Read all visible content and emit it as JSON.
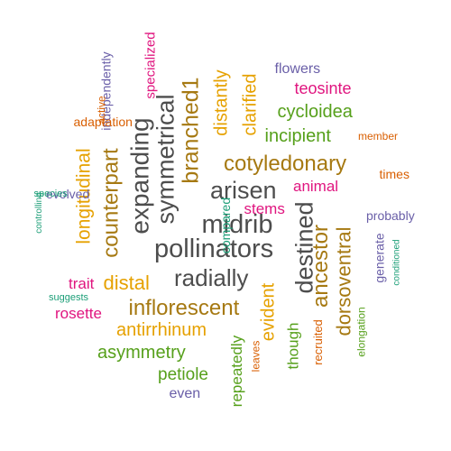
{
  "colors": {
    "dark_gray": "#4d4d4d",
    "gold": "#e6a100",
    "green": "#56a01b",
    "brown": "#a67912",
    "magenta": "#e0157f",
    "purple": "#6a5fa8",
    "orange": "#d95f02",
    "teal": "#1b9e77"
  },
  "words": [
    {
      "text": "pollinators",
      "color": "dark_gray",
      "vertical": false
    },
    {
      "text": "midrib",
      "color": "dark_gray",
      "vertical": false
    },
    {
      "text": "arisen",
      "color": "dark_gray",
      "vertical": false
    },
    {
      "text": "radially",
      "color": "dark_gray",
      "vertical": false
    },
    {
      "text": "destined",
      "color": "dark_gray",
      "vertical": true
    },
    {
      "text": "expanding",
      "color": "dark_gray",
      "vertical": true
    },
    {
      "text": "symmetrical",
      "color": "dark_gray",
      "vertical": true
    },
    {
      "text": "counterpart",
      "color": "brown",
      "vertical": true
    },
    {
      "text": "branched1",
      "color": "brown",
      "vertical": true
    },
    {
      "text": "cotyledonary",
      "color": "brown",
      "vertical": false
    },
    {
      "text": "ancestor",
      "color": "brown",
      "vertical": true
    },
    {
      "text": "dorsoventral",
      "color": "brown",
      "vertical": true
    },
    {
      "text": "inflorescent",
      "color": "brown",
      "vertical": false
    },
    {
      "text": "distal",
      "color": "gold",
      "vertical": false
    },
    {
      "text": "antirrhinum",
      "color": "gold",
      "vertical": false
    },
    {
      "text": "longitudinal",
      "color": "gold",
      "vertical": true
    },
    {
      "text": "distantly",
      "color": "gold",
      "vertical": true
    },
    {
      "text": "clarified",
      "color": "gold",
      "vertical": true
    },
    {
      "text": "evident",
      "color": "gold",
      "vertical": true
    },
    {
      "text": "incipient",
      "color": "green",
      "vertical": false
    },
    {
      "text": "cycloidea",
      "color": "green",
      "vertical": false
    },
    {
      "text": "asymmetry",
      "color": "green",
      "vertical": false
    },
    {
      "text": "petiole",
      "color": "green",
      "vertical": false
    },
    {
      "text": "repeatedly",
      "color": "green",
      "vertical": true
    },
    {
      "text": "though",
      "color": "green",
      "vertical": true
    },
    {
      "text": "elongation",
      "color": "green",
      "vertical": true
    },
    {
      "text": "teosinte",
      "color": "magenta",
      "vertical": false
    },
    {
      "text": "animal",
      "color": "magenta",
      "vertical": false
    },
    {
      "text": "stems",
      "color": "magenta",
      "vertical": false
    },
    {
      "text": "trait",
      "color": "magenta",
      "vertical": false
    },
    {
      "text": "rosette",
      "color": "magenta",
      "vertical": false
    },
    {
      "text": "specialized",
      "color": "magenta",
      "vertical": true
    },
    {
      "text": "flowers",
      "color": "purple",
      "vertical": false
    },
    {
      "text": "probably",
      "color": "purple",
      "vertical": false
    },
    {
      "text": "even",
      "color": "purple",
      "vertical": false
    },
    {
      "text": "evolved",
      "color": "purple",
      "vertical": false
    },
    {
      "text": "generate",
      "color": "purple",
      "vertical": true
    },
    {
      "text": "independently",
      "color": "purple",
      "vertical": true
    },
    {
      "text": "adaptation",
      "color": "orange",
      "vertical": false
    },
    {
      "text": "times",
      "color": "orange",
      "vertical": false
    },
    {
      "text": "member",
      "color": "orange",
      "vertical": false
    },
    {
      "text": "recruited",
      "color": "orange",
      "vertical": true
    },
    {
      "text": "leaves",
      "color": "orange",
      "vertical": true
    },
    {
      "text": "active",
      "color": "orange",
      "vertical": true
    },
    {
      "text": "suggests",
      "color": "teal",
      "vertical": false
    },
    {
      "text": "species",
      "color": "teal",
      "vertical": false
    },
    {
      "text": "controlling",
      "color": "teal",
      "vertical": true
    },
    {
      "text": "conditioned",
      "color": "teal",
      "vertical": true
    },
    {
      "text": "compared",
      "color": "teal",
      "vertical": true
    }
  ]
}
